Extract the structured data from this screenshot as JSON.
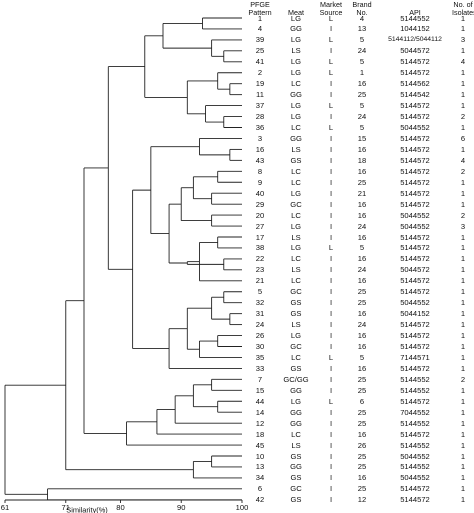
{
  "headers": {
    "pattern": "PFGE\nPattern",
    "meat": "Meat",
    "market": "Market\nSource",
    "brand": "Brand\nNo.",
    "api": "API",
    "isolates": "No. of\nIsolates"
  },
  "axis": {
    "label": "Similarity(%)",
    "ticks": [
      61,
      71,
      80,
      90,
      100
    ],
    "range": [
      61,
      100
    ]
  },
  "rows": [
    {
      "pattern": "1",
      "meat": "LG",
      "market": "L",
      "brand": "4",
      "api": "5144552",
      "isolates": "1"
    },
    {
      "pattern": "4",
      "meat": "GG",
      "market": "I",
      "brand": "13",
      "api": "1044152",
      "isolates": "1"
    },
    {
      "pattern": "39",
      "meat": "LG",
      "market": "L",
      "brand": "5",
      "api": "5144112/5044112",
      "isolates": "3"
    },
    {
      "pattern": "25",
      "meat": "LS",
      "market": "I",
      "brand": "24",
      "api": "5044572",
      "isolates": "1"
    },
    {
      "pattern": "41",
      "meat": "LG",
      "market": "L",
      "brand": "5",
      "api": "5144572",
      "isolates": "4"
    },
    {
      "pattern": "2",
      "meat": "LG",
      "market": "L",
      "brand": "1",
      "api": "5144572",
      "isolates": "1"
    },
    {
      "pattern": "19",
      "meat": "LC",
      "market": "I",
      "brand": "16",
      "api": "5144562",
      "isolates": "1"
    },
    {
      "pattern": "11",
      "meat": "GG",
      "market": "I",
      "brand": "25",
      "api": "5144542",
      "isolates": "1"
    },
    {
      "pattern": "37",
      "meat": "LG",
      "market": "L",
      "brand": "5",
      "api": "5144572",
      "isolates": "1"
    },
    {
      "pattern": "28",
      "meat": "LG",
      "market": "I",
      "brand": "24",
      "api": "5144572",
      "isolates": "2"
    },
    {
      "pattern": "36",
      "meat": "LC",
      "market": "L",
      "brand": "5",
      "api": "5044552",
      "isolates": "1"
    },
    {
      "pattern": "3",
      "meat": "GG",
      "market": "I",
      "brand": "15",
      "api": "5144572",
      "isolates": "6"
    },
    {
      "pattern": "16",
      "meat": "LS",
      "market": "I",
      "brand": "16",
      "api": "5144572",
      "isolates": "1"
    },
    {
      "pattern": "43",
      "meat": "GS",
      "market": "I",
      "brand": "18",
      "api": "5144572",
      "isolates": "4"
    },
    {
      "pattern": "8",
      "meat": "LC",
      "market": "I",
      "brand": "16",
      "api": "5144572",
      "isolates": "2"
    },
    {
      "pattern": "9",
      "meat": "LC",
      "market": "I",
      "brand": "25",
      "api": "5144572",
      "isolates": "1"
    },
    {
      "pattern": "40",
      "meat": "LG",
      "market": "I",
      "brand": "21",
      "api": "5144572",
      "isolates": "1"
    },
    {
      "pattern": "29",
      "meat": "GC",
      "market": "I",
      "brand": "16",
      "api": "5144572",
      "isolates": "1"
    },
    {
      "pattern": "20",
      "meat": "LC",
      "market": "I",
      "brand": "16",
      "api": "5044552",
      "isolates": "2"
    },
    {
      "pattern": "27",
      "meat": "LG",
      "market": "I",
      "brand": "24",
      "api": "5044552",
      "isolates": "3"
    },
    {
      "pattern": "17",
      "meat": "LS",
      "market": "I",
      "brand": "16",
      "api": "5144572",
      "isolates": "1"
    },
    {
      "pattern": "38",
      "meat": "LG",
      "market": "L",
      "brand": "5",
      "api": "5144572",
      "isolates": "1"
    },
    {
      "pattern": "22",
      "meat": "LC",
      "market": "I",
      "brand": "16",
      "api": "5144572",
      "isolates": "1"
    },
    {
      "pattern": "23",
      "meat": "LS",
      "market": "I",
      "brand": "24",
      "api": "5044572",
      "isolates": "1"
    },
    {
      "pattern": "21",
      "meat": "LC",
      "market": "I",
      "brand": "16",
      "api": "5144572",
      "isolates": "1"
    },
    {
      "pattern": "5",
      "meat": "GC",
      "market": "I",
      "brand": "25",
      "api": "5144572",
      "isolates": "1"
    },
    {
      "pattern": "32",
      "meat": "GS",
      "market": "I",
      "brand": "25",
      "api": "5044552",
      "isolates": "1"
    },
    {
      "pattern": "31",
      "meat": "GS",
      "market": "I",
      "brand": "16",
      "api": "5044152",
      "isolates": "1"
    },
    {
      "pattern": "24",
      "meat": "LS",
      "market": "I",
      "brand": "24",
      "api": "5144572",
      "isolates": "1"
    },
    {
      "pattern": "26",
      "meat": "LG",
      "market": "I",
      "brand": "16",
      "api": "5144572",
      "isolates": "1"
    },
    {
      "pattern": "30",
      "meat": "GC",
      "market": "I",
      "brand": "16",
      "api": "5144572",
      "isolates": "1"
    },
    {
      "pattern": "35",
      "meat": "LC",
      "market": "L",
      "brand": "5",
      "api": "7144571",
      "isolates": "1"
    },
    {
      "pattern": "33",
      "meat": "GS",
      "market": "I",
      "brand": "16",
      "api": "5144572",
      "isolates": "1"
    },
    {
      "pattern": "7",
      "meat": "GC/GG",
      "market": "I",
      "brand": "25",
      "api": "5144552",
      "isolates": "2"
    },
    {
      "pattern": "15",
      "meat": "GG",
      "market": "I",
      "brand": "25",
      "api": "5144552",
      "isolates": "1"
    },
    {
      "pattern": "44",
      "meat": "LG",
      "market": "L",
      "brand": "6",
      "api": "5144572",
      "isolates": "1"
    },
    {
      "pattern": "14",
      "meat": "GG",
      "market": "I",
      "brand": "25",
      "api": "7044552",
      "isolates": "1"
    },
    {
      "pattern": "12",
      "meat": "GG",
      "market": "I",
      "brand": "25",
      "api": "5144552",
      "isolates": "1"
    },
    {
      "pattern": "18",
      "meat": "LC",
      "market": "I",
      "brand": "16",
      "api": "5144572",
      "isolates": "1"
    },
    {
      "pattern": "45",
      "meat": "LS",
      "market": "I",
      "brand": "26",
      "api": "5144552",
      "isolates": "1"
    },
    {
      "pattern": "10",
      "meat": "GS",
      "market": "I",
      "brand": "25",
      "api": "5044552",
      "isolates": "1"
    },
    {
      "pattern": "13",
      "meat": "GG",
      "market": "I",
      "brand": "25",
      "api": "5144552",
      "isolates": "1"
    },
    {
      "pattern": "34",
      "meat": "GS",
      "market": "I",
      "brand": "16",
      "api": "5044552",
      "isolates": "1"
    },
    {
      "pattern": "6",
      "meat": "GC",
      "market": "I",
      "brand": "25",
      "api": "5144572",
      "isolates": "1"
    },
    {
      "pattern": "42",
      "meat": "GS",
      "market": "I",
      "brand": "12",
      "api": "5144572",
      "isolates": "1"
    }
  ],
  "dendrogram": {
    "leaf_line_end": 100,
    "merges": [
      {
        "a": "L0",
        "b": "L1",
        "s": 93.5
      },
      {
        "a": "L3",
        "b": "L4",
        "s": 97
      },
      {
        "a": "L2",
        "b": "N1",
        "s": 95
      },
      {
        "a": "N0",
        "b": "N2",
        "s": 87
      },
      {
        "a": "L6",
        "b": "L7",
        "s": 98
      },
      {
        "a": "L5",
        "b": "N4",
        "s": 96
      },
      {
        "a": "L9",
        "b": "L10",
        "s": 97
      },
      {
        "a": "L8",
        "b": "N6",
        "s": 94
      },
      {
        "a": "N5",
        "b": "N7",
        "s": 91
      },
      {
        "a": "N3",
        "b": "N8",
        "s": 84
      },
      {
        "a": "L12",
        "b": "L13",
        "s": 98
      },
      {
        "a": "L11",
        "b": "N10",
        "s": 93
      },
      {
        "a": "L14",
        "b": "L15",
        "s": 96
      },
      {
        "a": "L16",
        "b": "L17",
        "s": 95
      },
      {
        "a": "N12",
        "b": "N13",
        "s": 92
      },
      {
        "a": "L18",
        "b": "L19",
        "s": 95
      },
      {
        "a": "N14",
        "b": "N15",
        "s": 90
      },
      {
        "a": "L20",
        "b": "L21",
        "s": 96
      },
      {
        "a": "L22",
        "b": "L23",
        "s": 97
      },
      {
        "a": "N17",
        "b": "L24",
        "s": 93
      },
      {
        "a": "N18",
        "b": "N19",
        "s": 91
      },
      {
        "a": "N16",
        "b": "N20",
        "s": 88
      },
      {
        "a": "N11",
        "b": "N21",
        "s": 85
      },
      {
        "a": "L25",
        "b": "L26",
        "s": 97
      },
      {
        "a": "L27",
        "b": "L28",
        "s": 98
      },
      {
        "a": "N23",
        "b": "N24",
        "s": 95
      },
      {
        "a": "L29",
        "b": "L30",
        "s": 96
      },
      {
        "a": "N26",
        "b": "L31",
        "s": 93
      },
      {
        "a": "N25",
        "b": "N27",
        "s": 91
      },
      {
        "a": "N28",
        "b": "L32",
        "s": 88
      },
      {
        "a": "N22",
        "b": "N29",
        "s": 82
      },
      {
        "a": "N9",
        "b": "N30",
        "s": 78
      },
      {
        "a": "L33",
        "b": "L34",
        "s": 95
      },
      {
        "a": "L35",
        "b": "L36",
        "s": 96
      },
      {
        "a": "N32",
        "b": "N33",
        "s": 92
      },
      {
        "a": "N34",
        "b": "L37",
        "s": 89
      },
      {
        "a": "N35",
        "b": "L38",
        "s": 86
      },
      {
        "a": "N36",
        "b": "L39",
        "s": 81
      },
      {
        "a": "N31",
        "b": "N37",
        "s": 74
      },
      {
        "a": "L40",
        "b": "L41",
        "s": 95
      },
      {
        "a": "N39",
        "b": "L42",
        "s": 92
      },
      {
        "a": "N38",
        "b": "N40",
        "s": 71
      },
      {
        "a": "L43",
        "b": "L44",
        "s": 68
      },
      {
        "a": "N41",
        "b": "N42",
        "s": 61
      }
    ]
  }
}
